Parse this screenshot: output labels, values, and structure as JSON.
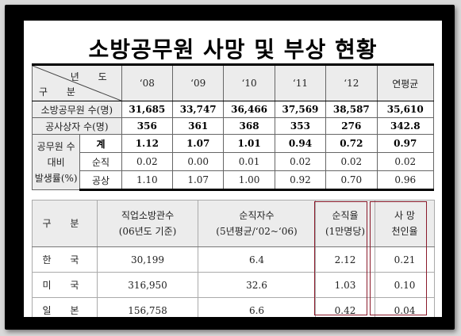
{
  "title": "소방공무원 사망 및 부상 현황",
  "table1": {
    "corner_top": "년 도",
    "corner_bottom": "구 분",
    "years": [
      "‘08",
      "‘09",
      "‘10",
      "‘11",
      "‘12",
      "연평균"
    ],
    "rows": [
      {
        "label": "소방공무원 수(명)",
        "values": [
          "31,685",
          "33,747",
          "36,466",
          "37,569",
          "38,587",
          "35,610"
        ]
      },
      {
        "label": "공사상자 수(명)",
        "values": [
          "356",
          "361",
          "368",
          "353",
          "276",
          "342.8"
        ]
      }
    ],
    "group_label": [
      "공무원 수",
      "대비",
      "발생률(%)"
    ],
    "group_rows": [
      {
        "label": "계",
        "values": [
          "1.12",
          "1.07",
          "1.01",
          "0.94",
          "0.72",
          "0.97"
        ]
      },
      {
        "label": "순직",
        "values": [
          "0.02",
          "0.00",
          "0.01",
          "0.02",
          "0.02",
          "0.02"
        ]
      },
      {
        "label": "공상",
        "values": [
          "1.10",
          "1.07",
          "1.00",
          "0.92",
          "0.70",
          "0.96"
        ]
      }
    ]
  },
  "table2": {
    "headers": [
      [
        "구 분"
      ],
      [
        "직업소방관수",
        "(06년도 기준)"
      ],
      [
        "순직자수",
        "(5년평균/‘02~‘06)"
      ],
      [
        "순직율",
        "(1만명당)"
      ],
      [
        "사 망",
        "천인율"
      ]
    ],
    "rows": [
      {
        "label": "한 국",
        "values": [
          "30,199",
          "6.4",
          "2.12",
          "0.21"
        ]
      },
      {
        "label": "미 국",
        "values": [
          "316,950",
          "32.6",
          "1.03",
          "0.10"
        ]
      },
      {
        "label": "일 본",
        "values": [
          "156,758",
          "6.6",
          "0.42",
          "0.04"
        ]
      }
    ]
  },
  "colors": {
    "highlight_border": "#8b1a2b",
    "header_fill": "#ececec",
    "frame": "#000000"
  }
}
